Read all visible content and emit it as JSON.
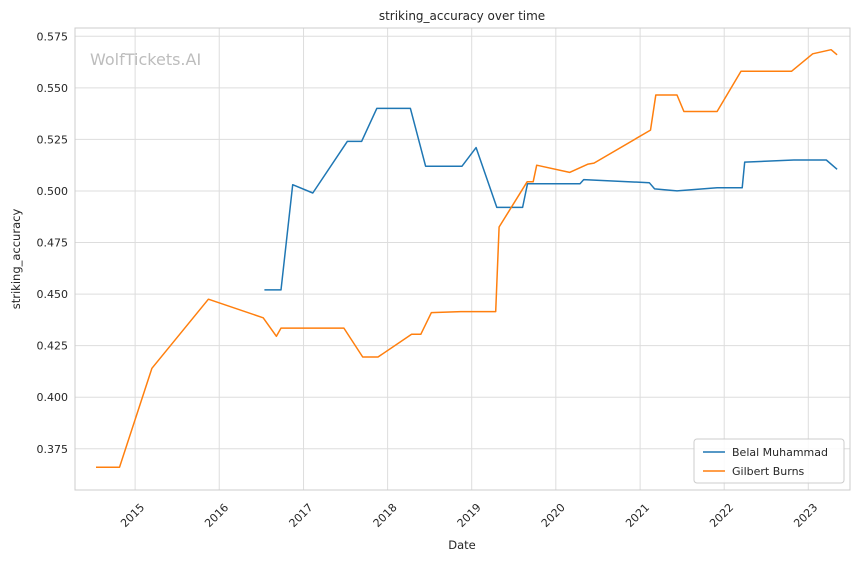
{
  "chart_data": {
    "type": "line",
    "title": "striking_accuracy over time",
    "xlabel": "Date",
    "ylabel": "striking_accuracy",
    "watermark": "WolfTickets.AI",
    "xlim": [
      "2014-04-15",
      "2023-07-01"
    ],
    "ylim": [
      0.355,
      0.579
    ],
    "x_ticks": [
      "2015",
      "2016",
      "2017",
      "2018",
      "2019",
      "2020",
      "2021",
      "2022",
      "2023"
    ],
    "y_ticks": [
      "0.375",
      "0.400",
      "0.425",
      "0.450",
      "0.475",
      "0.500",
      "0.525",
      "0.550",
      "0.575"
    ],
    "grid": true,
    "legend_position": "bottom-right",
    "colors": {
      "Belal Muhammad": "#1f77b4",
      "Gilbert Burns": "#ff7f0e"
    },
    "series": [
      {
        "name": "Belal Muhammad",
        "points": [
          [
            "2016-07-15",
            0.452
          ],
          [
            "2016-09-25",
            0.452
          ],
          [
            "2016-11-15",
            0.503
          ],
          [
            "2017-02-10",
            0.499
          ],
          [
            "2017-07-10",
            0.524
          ],
          [
            "2017-09-10",
            0.524
          ],
          [
            "2017-11-15",
            0.54
          ],
          [
            "2018-04-10",
            0.54
          ],
          [
            "2018-06-15",
            0.512
          ],
          [
            "2018-11-20",
            0.512
          ],
          [
            "2019-01-20",
            0.521
          ],
          [
            "2019-04-20",
            0.492
          ],
          [
            "2019-08-10",
            0.492
          ],
          [
            "2019-08-31",
            0.5035
          ],
          [
            "2020-04-15",
            0.5035
          ],
          [
            "2020-05-01",
            0.5055
          ],
          [
            "2021-02-10",
            0.504
          ],
          [
            "2021-03-05",
            0.501
          ],
          [
            "2021-06-10",
            0.5
          ],
          [
            "2021-12-01",
            0.5015
          ],
          [
            "2022-03-20",
            0.5015
          ],
          [
            "2022-03-31",
            0.514
          ],
          [
            "2022-10-30",
            0.515
          ],
          [
            "2023-03-20",
            0.515
          ],
          [
            "2023-05-06",
            0.5105
          ]
        ]
      },
      {
        "name": "Gilbert Burns",
        "points": [
          [
            "2014-07-15",
            0.366
          ],
          [
            "2014-10-25",
            0.366
          ],
          [
            "2015-03-15",
            0.414
          ],
          [
            "2015-11-15",
            0.4475
          ],
          [
            "2016-07-10",
            0.4385
          ],
          [
            "2016-09-05",
            0.4295
          ],
          [
            "2016-09-25",
            0.4335
          ],
          [
            "2017-06-25",
            0.4335
          ],
          [
            "2017-09-15",
            0.4195
          ],
          [
            "2017-11-20",
            0.4195
          ],
          [
            "2018-04-15",
            0.4305
          ],
          [
            "2018-05-25",
            0.4305
          ],
          [
            "2018-07-10",
            0.441
          ],
          [
            "2018-11-15",
            0.4415
          ],
          [
            "2019-04-15",
            0.4415
          ],
          [
            "2019-04-30",
            0.4825
          ],
          [
            "2019-08-30",
            0.5045
          ],
          [
            "2019-09-25",
            0.5045
          ],
          [
            "2019-10-10",
            0.5125
          ],
          [
            "2020-03-01",
            0.509
          ],
          [
            "2020-05-20",
            0.513
          ],
          [
            "2020-06-15",
            0.5135
          ],
          [
            "2021-02-15",
            0.5295
          ],
          [
            "2021-03-10",
            0.5465
          ],
          [
            "2021-06-10",
            0.5465
          ],
          [
            "2021-07-10",
            0.5385
          ],
          [
            "2021-12-01",
            0.5385
          ],
          [
            "2022-03-15",
            0.558
          ],
          [
            "2022-10-20",
            0.558
          ],
          [
            "2023-01-20",
            0.5665
          ],
          [
            "2023-04-10",
            0.5685
          ],
          [
            "2023-05-06",
            0.566
          ]
        ]
      }
    ]
  }
}
